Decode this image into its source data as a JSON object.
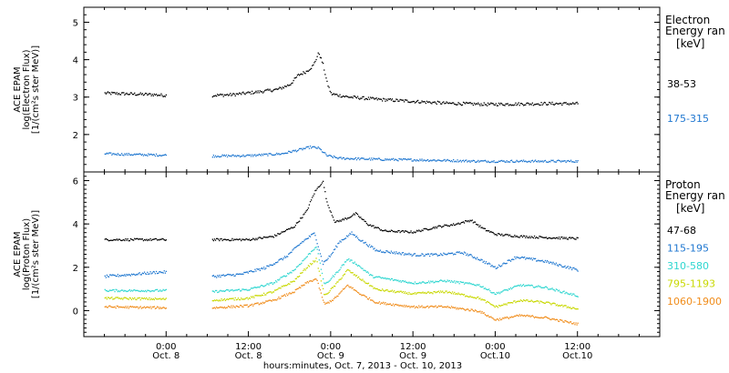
{
  "chart_data": [
    {
      "type": "scatter",
      "name": "electron-panel",
      "ylabel_lines": [
        "ACE EPAM",
        "log(Electron Flux)",
        "[1/(cm²s ster MeV)]"
      ],
      "legend_title_lines": [
        "Electron",
        "Energy ran"
      ],
      "legend_unit": "[keV]",
      "ylim": [
        1.0,
        5.4
      ],
      "yticks": [
        2,
        3,
        4,
        5
      ],
      "gaps": [
        [
          1.0,
          1.55
        ]
      ],
      "series": [
        {
          "name": "38-53",
          "color": "#000000",
          "noise": 0.04,
          "points": [
            [
              0.25,
              3.12
            ],
            [
              0.55,
              3.1
            ],
            [
              0.85,
              3.08
            ],
            [
              0.98,
              3.06
            ],
            [
              1.05,
              3.06
            ],
            [
              1.55,
              3.06
            ],
            [
              1.8,
              3.08
            ],
            [
              2.1,
              3.15
            ],
            [
              2.35,
              3.22
            ],
            [
              2.5,
              3.35
            ],
            [
              2.6,
              3.6
            ],
            [
              2.7,
              3.7
            ],
            [
              2.78,
              3.85
            ],
            [
              2.85,
              4.2
            ],
            [
              2.9,
              3.9
            ],
            [
              2.95,
              3.4
            ],
            [
              3.0,
              3.1
            ],
            [
              3.2,
              3.02
            ],
            [
              3.6,
              2.95
            ],
            [
              4.0,
              2.9
            ],
            [
              4.4,
              2.85
            ],
            [
              4.9,
              2.82
            ],
            [
              5.6,
              2.84
            ],
            [
              6.0,
              2.84
            ]
          ]
        },
        {
          "name": "175-315",
          "color": "#1f77d0",
          "noise": 0.03,
          "points": [
            [
              0.25,
              1.5
            ],
            [
              0.6,
              1.48
            ],
            [
              1.05,
              1.46
            ],
            [
              1.55,
              1.44
            ],
            [
              2.0,
              1.45
            ],
            [
              2.4,
              1.5
            ],
            [
              2.6,
              1.6
            ],
            [
              2.75,
              1.68
            ],
            [
              2.85,
              1.65
            ],
            [
              2.95,
              1.45
            ],
            [
              3.1,
              1.38
            ],
            [
              3.6,
              1.35
            ],
            [
              4.2,
              1.33
            ],
            [
              4.8,
              1.3
            ],
            [
              5.4,
              1.3
            ],
            [
              6.0,
              1.3
            ]
          ]
        }
      ]
    },
    {
      "type": "scatter",
      "name": "proton-panel",
      "ylabel_lines": [
        "ACE EPAM",
        "log(Proton Flux)",
        "[1/(cm²s ster MeV)]"
      ],
      "legend_title_lines": [
        "Proton",
        "Energy ran"
      ],
      "legend_unit": "[keV]",
      "ylim": [
        -1.2,
        6.4
      ],
      "yticks": [
        0,
        2,
        4,
        6
      ],
      "gaps": [
        [
          1.0,
          1.55
        ]
      ],
      "series": [
        {
          "name": "47-68",
          "color": "#000000",
          "noise": 0.05,
          "points": [
            [
              0.25,
              3.3
            ],
            [
              1.05,
              3.3
            ],
            [
              1.55,
              3.3
            ],
            [
              2.0,
              3.3
            ],
            [
              2.3,
              3.45
            ],
            [
              2.55,
              3.9
            ],
            [
              2.7,
              4.6
            ],
            [
              2.8,
              5.5
            ],
            [
              2.9,
              6.0
            ],
            [
              2.95,
              5.0
            ],
            [
              3.05,
              4.1
            ],
            [
              3.2,
              4.3
            ],
            [
              3.3,
              4.5
            ],
            [
              3.45,
              4.0
            ],
            [
              3.65,
              3.7
            ],
            [
              4.0,
              3.65
            ],
            [
              4.3,
              3.9
            ],
            [
              4.5,
              4.0
            ],
            [
              4.7,
              4.2
            ],
            [
              4.85,
              3.8
            ],
            [
              5.0,
              3.55
            ],
            [
              5.3,
              3.45
            ],
            [
              5.6,
              3.4
            ],
            [
              6.0,
              3.35
            ]
          ]
        },
        {
          "name": "115-195",
          "color": "#1f77d0",
          "noise": 0.06,
          "points": [
            [
              0.25,
              1.6
            ],
            [
              0.6,
              1.7
            ],
            [
              0.9,
              1.8
            ],
            [
              1.05,
              1.8
            ],
            [
              1.55,
              1.6
            ],
            [
              1.9,
              1.7
            ],
            [
              2.2,
              2.0
            ],
            [
              2.45,
              2.5
            ],
            [
              2.65,
              3.2
            ],
            [
              2.8,
              3.6
            ],
            [
              2.9,
              2.2
            ],
            [
              3.0,
              2.6
            ],
            [
              3.1,
              3.2
            ],
            [
              3.25,
              3.6
            ],
            [
              3.35,
              3.3
            ],
            [
              3.55,
              2.8
            ],
            [
              4.0,
              2.6
            ],
            [
              4.3,
              2.6
            ],
            [
              4.6,
              2.7
            ],
            [
              4.8,
              2.4
            ],
            [
              5.0,
              2.0
            ],
            [
              5.25,
              2.5
            ],
            [
              5.6,
              2.3
            ],
            [
              6.0,
              1.9
            ]
          ]
        },
        {
          "name": "310-580",
          "color": "#2fd6d0",
          "noise": 0.05,
          "points": [
            [
              0.25,
              0.95
            ],
            [
              1.05,
              0.95
            ],
            [
              1.55,
              0.9
            ],
            [
              2.0,
              1.0
            ],
            [
              2.3,
              1.3
            ],
            [
              2.55,
              1.9
            ],
            [
              2.7,
              2.5
            ],
            [
              2.82,
              3.0
            ],
            [
              2.92,
              1.2
            ],
            [
              3.05,
              1.7
            ],
            [
              3.2,
              2.4
            ],
            [
              3.3,
              2.2
            ],
            [
              3.5,
              1.6
            ],
            [
              4.0,
              1.3
            ],
            [
              4.4,
              1.4
            ],
            [
              4.8,
              1.2
            ],
            [
              5.0,
              0.8
            ],
            [
              5.3,
              1.2
            ],
            [
              5.6,
              1.1
            ],
            [
              6.0,
              0.7
            ]
          ]
        },
        {
          "name": "795-1193",
          "color": "#c8d800",
          "noise": 0.05,
          "points": [
            [
              0.25,
              0.6
            ],
            [
              1.05,
              0.55
            ],
            [
              1.55,
              0.5
            ],
            [
              2.0,
              0.6
            ],
            [
              2.3,
              0.9
            ],
            [
              2.55,
              1.4
            ],
            [
              2.7,
              2.0
            ],
            [
              2.82,
              2.4
            ],
            [
              2.92,
              0.7
            ],
            [
              3.05,
              1.2
            ],
            [
              3.2,
              1.9
            ],
            [
              3.35,
              1.5
            ],
            [
              3.55,
              1.0
            ],
            [
              4.0,
              0.8
            ],
            [
              4.4,
              0.9
            ],
            [
              4.8,
              0.6
            ],
            [
              5.0,
              0.2
            ],
            [
              5.3,
              0.5
            ],
            [
              5.6,
              0.4
            ],
            [
              6.0,
              0.1
            ]
          ]
        },
        {
          "name": "1060-1900",
          "color": "#f08c1a",
          "noise": 0.05,
          "points": [
            [
              0.25,
              0.2
            ],
            [
              1.05,
              0.15
            ],
            [
              1.55,
              0.15
            ],
            [
              2.0,
              0.25
            ],
            [
              2.3,
              0.5
            ],
            [
              2.55,
              0.9
            ],
            [
              2.7,
              1.3
            ],
            [
              2.82,
              1.5
            ],
            [
              2.92,
              0.3
            ],
            [
              3.05,
              0.6
            ],
            [
              3.2,
              1.2
            ],
            [
              3.35,
              0.8
            ],
            [
              3.55,
              0.4
            ],
            [
              4.0,
              0.2
            ],
            [
              4.4,
              0.2
            ],
            [
              4.8,
              0.0
            ],
            [
              5.0,
              -0.4
            ],
            [
              5.3,
              -0.2
            ],
            [
              5.6,
              -0.3
            ],
            [
              6.0,
              -0.6
            ]
          ]
        }
      ]
    }
  ],
  "xaxis": {
    "label": "hours:minutes, Oct.  7, 2013 - Oct. 10, 2013",
    "xlim": [
      0,
      7.0
    ],
    "ticks": [
      {
        "x": 1.0,
        "top": "0:00",
        "bottom": "Oct. 8"
      },
      {
        "x": 2.0,
        "top": "12:00",
        "bottom": "Oct. 8"
      },
      {
        "x": 3.0,
        "top": "0:00",
        "bottom": "Oct. 9"
      },
      {
        "x": 4.0,
        "top": "12:00",
        "bottom": "Oct. 9"
      },
      {
        "x": 5.0,
        "top": "0:00",
        "bottom": "Oct.10"
      },
      {
        "x": 6.0,
        "top": "12:00",
        "bottom": "Oct.10"
      }
    ],
    "minor_step": 0.25
  }
}
